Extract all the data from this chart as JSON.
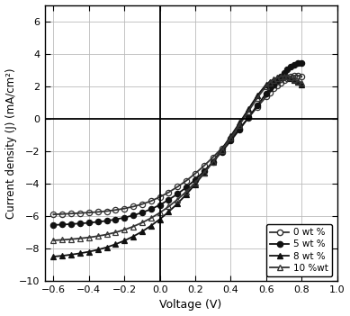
{
  "title": "",
  "xlabel": "Voltage (V)",
  "ylabel": "Current density (J) (mA/cm²)",
  "xlim": [
    -0.65,
    1.0
  ],
  "ylim": [
    -10,
    7
  ],
  "xticks": [
    -0.6,
    -0.4,
    -0.2,
    0.0,
    0.2,
    0.4,
    0.6,
    0.8,
    1.0
  ],
  "yticks": [
    -10,
    -8,
    -6,
    -4,
    -2,
    0,
    2,
    4,
    6
  ],
  "legend_labels": [
    "0 wt %",
    "5 wt %",
    "8 wt %",
    "10 %wt"
  ],
  "series": {
    "0wt": {
      "voltage": [
        -0.6,
        -0.55,
        -0.5,
        -0.45,
        -0.4,
        -0.35,
        -0.3,
        -0.25,
        -0.2,
        -0.15,
        -0.1,
        -0.05,
        0.0,
        0.05,
        0.1,
        0.15,
        0.2,
        0.25,
        0.3,
        0.35,
        0.4,
        0.45,
        0.5,
        0.55,
        0.6,
        0.62,
        0.64,
        0.66,
        0.68,
        0.7,
        0.72,
        0.74,
        0.76,
        0.78,
        0.8
      ],
      "current": [
        -5.9,
        -5.88,
        -5.85,
        -5.82,
        -5.79,
        -5.75,
        -5.7,
        -5.63,
        -5.54,
        -5.42,
        -5.27,
        -5.08,
        -4.83,
        -4.54,
        -4.2,
        -3.82,
        -3.38,
        -2.9,
        -2.38,
        -1.82,
        -1.22,
        -0.6,
        0.05,
        0.72,
        1.35,
        1.6,
        1.85,
        2.05,
        2.2,
        2.35,
        2.5,
        2.6,
        2.65,
        2.65,
        2.6
      ],
      "marker": "o",
      "fillstyle": "none",
      "color": "#333333",
      "markersize": 4.5,
      "linewidth": 1.3
    },
    "5wt": {
      "voltage": [
        -0.6,
        -0.55,
        -0.5,
        -0.45,
        -0.4,
        -0.35,
        -0.3,
        -0.25,
        -0.2,
        -0.15,
        -0.1,
        -0.05,
        0.0,
        0.05,
        0.1,
        0.15,
        0.2,
        0.25,
        0.3,
        0.35,
        0.4,
        0.45,
        0.5,
        0.55,
        0.6,
        0.62,
        0.64,
        0.66,
        0.68,
        0.7,
        0.72,
        0.74,
        0.76,
        0.78,
        0.8
      ],
      "current": [
        -6.55,
        -6.53,
        -6.5,
        -6.46,
        -6.42,
        -6.36,
        -6.3,
        -6.21,
        -6.1,
        -5.96,
        -5.79,
        -5.58,
        -5.32,
        -5.0,
        -4.64,
        -4.23,
        -3.76,
        -3.24,
        -2.66,
        -2.04,
        -1.37,
        -0.67,
        0.07,
        0.82,
        1.55,
        1.85,
        2.12,
        2.38,
        2.6,
        2.82,
        3.02,
        3.18,
        3.3,
        3.4,
        3.42
      ],
      "marker": "o",
      "fillstyle": "full",
      "color": "#111111",
      "markersize": 4.5,
      "linewidth": 1.3
    },
    "8wt": {
      "voltage": [
        -0.6,
        -0.55,
        -0.5,
        -0.45,
        -0.4,
        -0.35,
        -0.3,
        -0.25,
        -0.2,
        -0.15,
        -0.1,
        -0.05,
        0.0,
        0.05,
        0.1,
        0.15,
        0.2,
        0.25,
        0.3,
        0.35,
        0.4,
        0.45,
        0.5,
        0.55,
        0.6,
        0.62,
        0.64,
        0.66,
        0.68,
        0.7,
        0.72,
        0.74,
        0.76,
        0.78,
        0.8
      ],
      "current": [
        -8.5,
        -8.45,
        -8.38,
        -8.3,
        -8.2,
        -8.08,
        -7.93,
        -7.74,
        -7.52,
        -7.26,
        -6.96,
        -6.6,
        -6.2,
        -5.74,
        -5.23,
        -4.66,
        -4.04,
        -3.36,
        -2.64,
        -1.88,
        -1.08,
        -0.26,
        0.58,
        1.42,
        2.1,
        2.28,
        2.42,
        2.52,
        2.58,
        2.6,
        2.58,
        2.5,
        2.38,
        2.25,
        2.1
      ],
      "marker": "^",
      "fillstyle": "full",
      "color": "#111111",
      "markersize": 4.5,
      "linewidth": 1.3
    },
    "10wt": {
      "voltage": [
        -0.6,
        -0.55,
        -0.5,
        -0.45,
        -0.4,
        -0.35,
        -0.3,
        -0.25,
        -0.2,
        -0.15,
        -0.1,
        -0.05,
        0.0,
        0.05,
        0.1,
        0.15,
        0.2,
        0.25,
        0.3,
        0.35,
        0.4,
        0.45,
        0.5,
        0.55,
        0.6,
        0.62,
        0.64,
        0.66,
        0.68,
        0.7,
        0.72,
        0.74,
        0.76,
        0.78,
        0.8
      ],
      "current": [
        -7.5,
        -7.47,
        -7.43,
        -7.38,
        -7.32,
        -7.24,
        -7.14,
        -7.01,
        -6.85,
        -6.65,
        -6.41,
        -6.13,
        -5.8,
        -5.42,
        -4.98,
        -4.49,
        -3.94,
        -3.33,
        -2.66,
        -1.94,
        -1.18,
        -0.38,
        0.45,
        1.28,
        2.0,
        2.22,
        2.38,
        2.5,
        2.58,
        2.62,
        2.6,
        2.52,
        2.4,
        2.3,
        2.2
      ],
      "marker": "^",
      "fillstyle": "none",
      "color": "#333333",
      "markersize": 4.5,
      "linewidth": 1.3
    }
  },
  "background_color": "#ffffff",
  "grid_color": "#bbbbbb"
}
